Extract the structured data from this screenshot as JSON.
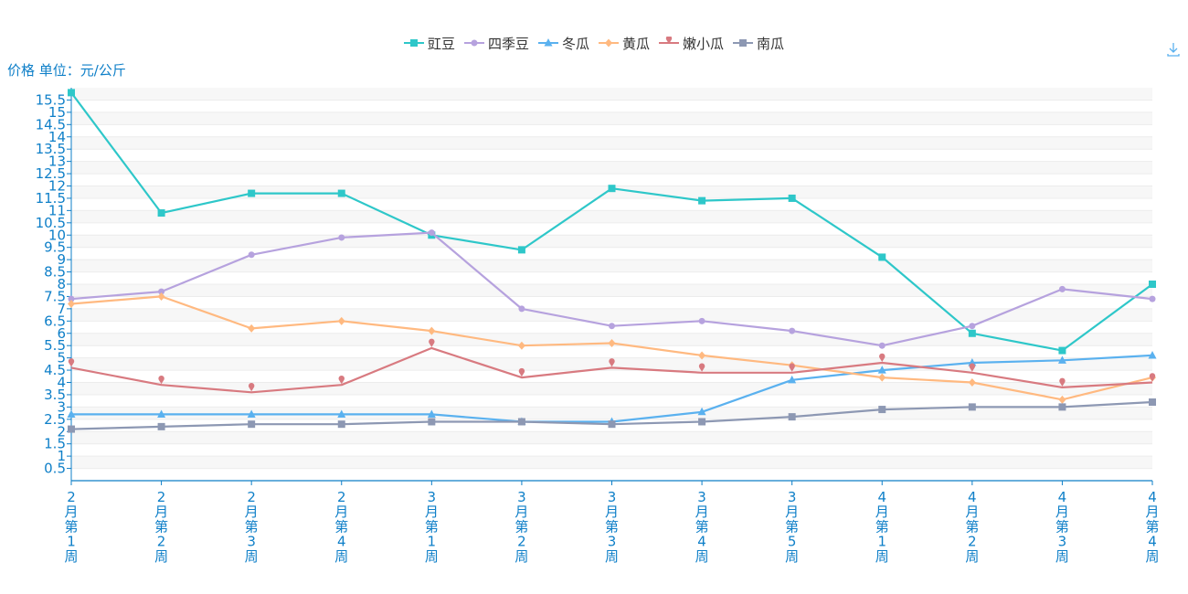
{
  "chart_data": {
    "type": "line",
    "ylabel": "价格 单位：元/公斤",
    "ylim": [
      0,
      16
    ],
    "yticks": [
      0.5,
      1,
      1.5,
      2,
      2.5,
      3,
      3.5,
      4,
      4.5,
      5,
      5.5,
      6,
      6.5,
      7,
      7.5,
      8,
      8.5,
      9,
      9.5,
      10,
      10.5,
      11,
      11.5,
      12,
      12.5,
      13,
      13.5,
      14,
      14.5,
      15,
      15.5
    ],
    "categories": [
      "2月第1周",
      "2月第2周",
      "2月第3周",
      "2月第4周",
      "3月第1周",
      "3月第2周",
      "3月第3周",
      "3月第4周",
      "3月第5周",
      "4月第1周",
      "4月第2周",
      "4月第3周",
      "4月第4周"
    ],
    "legend_position": "top-center",
    "grid": "alternating-bands",
    "series": [
      {
        "name": "豇豆",
        "color": "#2ec7c9",
        "symbol": "square",
        "values": [
          15.8,
          10.9,
          11.7,
          11.7,
          10.0,
          9.4,
          11.9,
          11.4,
          11.5,
          9.1,
          6.0,
          5.3,
          8.0
        ]
      },
      {
        "name": "四季豆",
        "color": "#b6a2de",
        "symbol": "circle",
        "values": [
          7.4,
          7.7,
          9.2,
          9.9,
          10.1,
          7.0,
          6.3,
          6.5,
          6.1,
          5.5,
          6.3,
          7.8,
          7.4
        ]
      },
      {
        "name": "冬瓜",
        "color": "#5ab1ef",
        "symbol": "triangle",
        "values": [
          2.7,
          2.7,
          2.7,
          2.7,
          2.7,
          2.4,
          2.4,
          2.8,
          4.1,
          4.5,
          4.8,
          4.9,
          5.1
        ]
      },
      {
        "name": "黄瓜",
        "color": "#ffb980",
        "symbol": "diamond",
        "values": [
          7.2,
          7.5,
          6.2,
          6.5,
          6.1,
          5.5,
          5.6,
          5.1,
          4.7,
          4.2,
          4.0,
          3.3,
          4.2
        ]
      },
      {
        "name": "嫩小瓜",
        "color": "#d87a80",
        "symbol": "pin",
        "values": [
          4.6,
          3.9,
          3.6,
          3.9,
          5.4,
          4.2,
          4.6,
          4.4,
          4.4,
          4.8,
          4.4,
          3.8,
          4.0
        ]
      },
      {
        "name": "南瓜",
        "color": "#8d98b3",
        "symbol": "square",
        "values": [
          2.1,
          2.2,
          2.3,
          2.3,
          2.4,
          2.4,
          2.3,
          2.4,
          2.6,
          2.9,
          3.0,
          3.0,
          3.2
        ]
      }
    ]
  },
  "toolbar": {
    "download_icon": "download-icon"
  }
}
